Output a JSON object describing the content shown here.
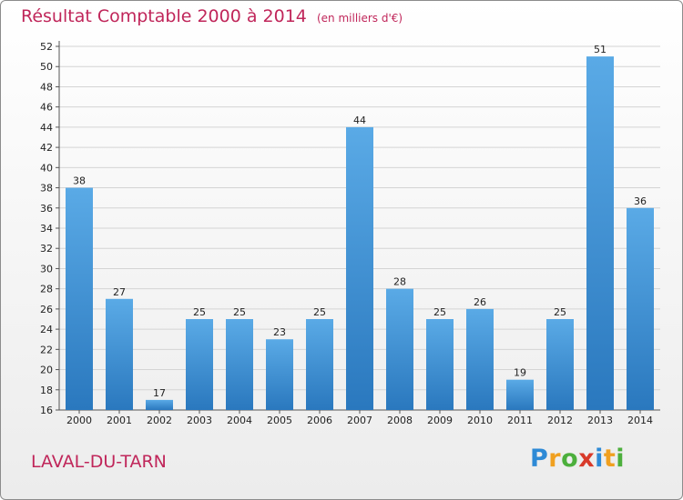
{
  "title": "Résultat Comptable 2000 à 2014",
  "subtitle": "(en milliers d'€)",
  "place": "LAVAL-DU-TARN",
  "logo": {
    "text": "Proxiti",
    "letters": [
      {
        "char": "P",
        "color": "#2e8ad6"
      },
      {
        "char": "r",
        "color": "#f0a020"
      },
      {
        "char": "o",
        "color": "#4caf3c"
      },
      {
        "char": "x",
        "color": "#d83a2a"
      },
      {
        "char": "i",
        "color": "#2e8ad6"
      },
      {
        "char": "t",
        "color": "#f0a020"
      },
      {
        "char": "i",
        "color": "#4caf3c"
      }
    ]
  },
  "colors": {
    "title": "#c0265a",
    "bar_light": "#5aaae6",
    "bar_dark": "#2a78be",
    "grid": "#d4d4d4"
  },
  "chart_data": {
    "type": "bar",
    "categories": [
      "2000",
      "2001",
      "2002",
      "2003",
      "2004",
      "2005",
      "2006",
      "2007",
      "2008",
      "2009",
      "2010",
      "2011",
      "2012",
      "2013",
      "2014"
    ],
    "values": [
      38,
      27,
      17,
      25,
      25,
      23,
      25,
      44,
      28,
      25,
      26,
      19,
      25,
      51,
      36
    ],
    "title": "Résultat Comptable 2000 à 2014",
    "subtitle": "(en milliers d'€)",
    "ylim": [
      16,
      52
    ],
    "yticks": [
      16,
      18,
      20,
      22,
      24,
      26,
      28,
      30,
      32,
      34,
      36,
      38,
      40,
      42,
      44,
      46,
      48,
      50,
      52
    ],
    "grid": true,
    "legend": "none"
  }
}
